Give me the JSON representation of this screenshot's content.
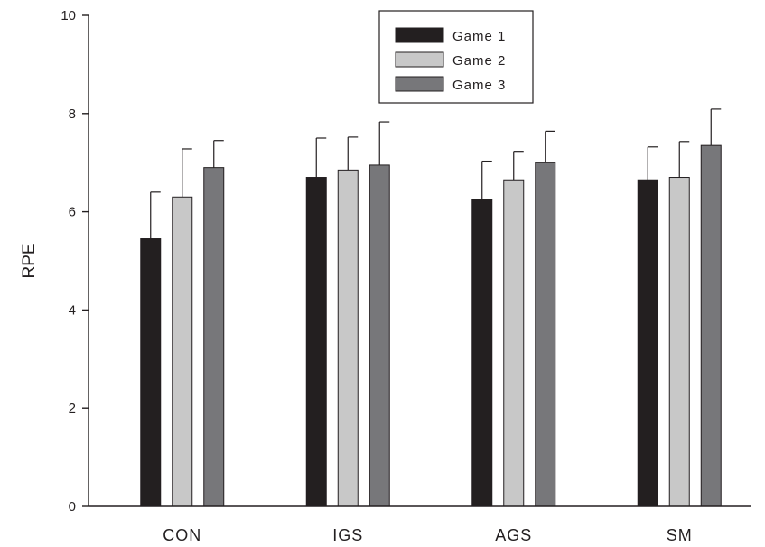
{
  "chart_data": {
    "type": "bar",
    "title": "",
    "xlabel": "",
    "ylabel": "RPE",
    "ylim": [
      0,
      10
    ],
    "yticks": [
      0,
      2,
      4,
      6,
      8,
      10
    ],
    "grid": false,
    "legend_position": "top-center",
    "categories": [
      "CON",
      "IGS",
      "AGS",
      "SM"
    ],
    "series": [
      {
        "name": "Game 1",
        "color": "#231f20",
        "values": [
          5.45,
          6.7,
          6.25,
          6.65
        ],
        "errors": [
          0.95,
          0.8,
          0.78,
          0.67
        ]
      },
      {
        "name": "Game 2",
        "color": "#c8c8c8",
        "values": [
          6.3,
          6.85,
          6.65,
          6.7
        ],
        "errors": [
          0.98,
          0.67,
          0.58,
          0.73
        ]
      },
      {
        "name": "Game 3",
        "color": "#77777a",
        "values": [
          6.9,
          6.95,
          7.0,
          7.35
        ],
        "errors": [
          0.55,
          0.88,
          0.64,
          0.74
        ]
      }
    ]
  }
}
